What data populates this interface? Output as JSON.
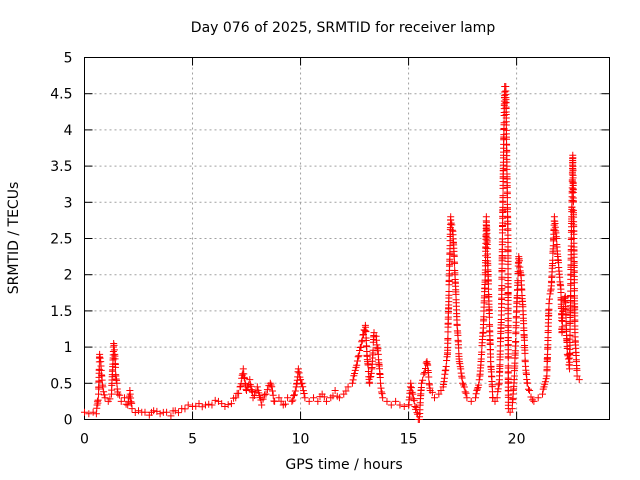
{
  "chart_data": {
    "type": "scatter",
    "title": "Day 076 of 2025, SRMTID for receiver lamp",
    "xlabel": "GPS time / hours",
    "ylabel": "SRMTID / TECUs",
    "xlim": [
      0,
      24.3
    ],
    "ylim": [
      0,
      5
    ],
    "grid": true,
    "marker": "plus",
    "color": "#ff0000",
    "x_ticks": [
      0,
      5,
      10,
      15,
      20
    ],
    "x_tick_labels": [
      "0",
      "5",
      "10",
      "15",
      "20"
    ],
    "y_ticks": [
      0,
      0.5,
      1,
      1.5,
      2,
      2.5,
      3,
      3.5,
      4,
      4.5,
      5
    ],
    "y_tick_labels": [
      "0",
      "0.5",
      "1",
      "1.5",
      "2",
      "2.5",
      "3",
      "3.5",
      "4",
      "4.5",
      "5"
    ],
    "series": [
      {
        "name": "SRMTID",
        "points": [
          [
            0.0,
            0.1
          ],
          [
            0.2,
            0.08
          ],
          [
            0.4,
            0.1
          ],
          [
            0.55,
            0.08
          ],
          [
            0.65,
            0.35
          ],
          [
            0.7,
            0.9
          ],
          [
            0.75,
            0.8
          ],
          [
            0.8,
            0.6
          ],
          [
            0.85,
            0.45
          ],
          [
            0.95,
            0.3
          ],
          [
            1.1,
            0.25
          ],
          [
            1.25,
            0.35
          ],
          [
            1.35,
            1.05
          ],
          [
            1.4,
            0.9
          ],
          [
            1.45,
            0.6
          ],
          [
            1.55,
            0.35
          ],
          [
            1.7,
            0.25
          ],
          [
            1.85,
            0.3
          ],
          [
            2.0,
            0.2
          ],
          [
            2.1,
            0.4
          ],
          [
            2.2,
            0.15
          ],
          [
            2.5,
            0.12
          ],
          [
            2.8,
            0.1
          ],
          [
            3.0,
            0.06
          ],
          [
            3.2,
            0.12
          ],
          [
            3.5,
            0.08
          ],
          [
            3.8,
            0.1
          ],
          [
            4.0,
            0.05
          ],
          [
            4.2,
            0.12
          ],
          [
            4.5,
            0.15
          ],
          [
            4.8,
            0.2
          ],
          [
            5.0,
            0.18
          ],
          [
            5.3,
            0.22
          ],
          [
            5.6,
            0.2
          ],
          [
            5.9,
            0.2
          ],
          [
            6.2,
            0.25
          ],
          [
            6.5,
            0.18
          ],
          [
            6.8,
            0.22
          ],
          [
            7.0,
            0.3
          ],
          [
            7.2,
            0.45
          ],
          [
            7.35,
            0.7
          ],
          [
            7.5,
            0.4
          ],
          [
            7.65,
            0.55
          ],
          [
            7.8,
            0.3
          ],
          [
            8.0,
            0.45
          ],
          [
            8.2,
            0.2
          ],
          [
            8.4,
            0.35
          ],
          [
            8.6,
            0.5
          ],
          [
            8.8,
            0.25
          ],
          [
            9.0,
            0.3
          ],
          [
            9.2,
            0.2
          ],
          [
            9.4,
            0.3
          ],
          [
            9.6,
            0.25
          ],
          [
            9.8,
            0.45
          ],
          [
            9.9,
            0.7
          ],
          [
            10.0,
            0.55
          ],
          [
            10.2,
            0.3
          ],
          [
            10.4,
            0.25
          ],
          [
            10.6,
            0.3
          ],
          [
            10.8,
            0.25
          ],
          [
            11.0,
            0.35
          ],
          [
            11.2,
            0.25
          ],
          [
            11.4,
            0.3
          ],
          [
            11.6,
            0.4
          ],
          [
            11.8,
            0.3
          ],
          [
            12.0,
            0.35
          ],
          [
            12.2,
            0.45
          ],
          [
            12.4,
            0.5
          ],
          [
            12.6,
            0.75
          ],
          [
            12.8,
            1.0
          ],
          [
            13.0,
            1.3
          ],
          [
            13.1,
            0.8
          ],
          [
            13.2,
            0.5
          ],
          [
            13.3,
            0.7
          ],
          [
            13.4,
            1.2
          ],
          [
            13.5,
            1.15
          ],
          [
            13.6,
            0.9
          ],
          [
            13.7,
            0.5
          ],
          [
            13.8,
            0.3
          ],
          [
            14.0,
            0.25
          ],
          [
            14.2,
            0.2
          ],
          [
            14.4,
            0.25
          ],
          [
            14.6,
            0.2
          ],
          [
            14.8,
            0.18
          ],
          [
            15.0,
            0.2
          ],
          [
            15.1,
            0.5
          ],
          [
            15.2,
            0.35
          ],
          [
            15.45,
            0.0
          ],
          [
            15.5,
            0.0
          ],
          [
            15.6,
            0.5
          ],
          [
            15.75,
            0.65
          ],
          [
            15.85,
            0.8
          ],
          [
            16.0,
            0.4
          ],
          [
            16.2,
            0.3
          ],
          [
            16.4,
            0.35
          ],
          [
            16.6,
            0.45
          ],
          [
            16.8,
            0.9
          ],
          [
            16.95,
            2.8
          ],
          [
            17.05,
            2.6
          ],
          [
            17.15,
            2.0
          ],
          [
            17.25,
            1.3
          ],
          [
            17.35,
            0.8
          ],
          [
            17.5,
            0.5
          ],
          [
            17.7,
            0.3
          ],
          [
            17.9,
            0.25
          ],
          [
            18.1,
            0.3
          ],
          [
            18.3,
            0.6
          ],
          [
            18.45,
            1.2
          ],
          [
            18.55,
            2.0
          ],
          [
            18.6,
            2.8
          ],
          [
            18.7,
            1.8
          ],
          [
            18.8,
            0.8
          ],
          [
            18.9,
            0.3
          ],
          [
            19.0,
            0.25
          ],
          [
            19.1,
            0.3
          ],
          [
            19.2,
            0.5
          ],
          [
            19.3,
            1.5
          ],
          [
            19.4,
            3.8
          ],
          [
            19.45,
            4.6
          ],
          [
            19.5,
            4.6
          ],
          [
            19.55,
            3.5
          ],
          [
            19.6,
            2.5
          ],
          [
            19.62,
            0.15
          ],
          [
            19.7,
            0.1
          ],
          [
            19.8,
            0.15
          ],
          [
            19.9,
            0.6
          ],
          [
            20.0,
            1.5
          ],
          [
            20.1,
            2.25
          ],
          [
            20.2,
            2.0
          ],
          [
            20.3,
            1.5
          ],
          [
            20.4,
            0.8
          ],
          [
            20.5,
            0.5
          ],
          [
            20.6,
            0.4
          ],
          [
            20.8,
            0.25
          ],
          [
            21.0,
            0.3
          ],
          [
            21.2,
            0.35
          ],
          [
            21.4,
            0.6
          ],
          [
            21.5,
            1.6
          ],
          [
            21.6,
            1.8
          ],
          [
            21.7,
            2.4
          ],
          [
            21.75,
            2.8
          ],
          [
            21.85,
            2.5
          ],
          [
            21.95,
            2.1
          ],
          [
            22.05,
            1.8
          ],
          [
            22.1,
            1.2
          ],
          [
            22.15,
            1.5
          ],
          [
            22.25,
            1.7
          ],
          [
            22.35,
            0.9
          ],
          [
            22.45,
            0.7
          ],
          [
            22.55,
            2.8
          ],
          [
            22.6,
            3.65
          ],
          [
            22.65,
            2.5
          ],
          [
            22.7,
            1.2
          ],
          [
            22.8,
            0.6
          ],
          [
            22.9,
            0.55
          ]
        ]
      }
    ]
  }
}
